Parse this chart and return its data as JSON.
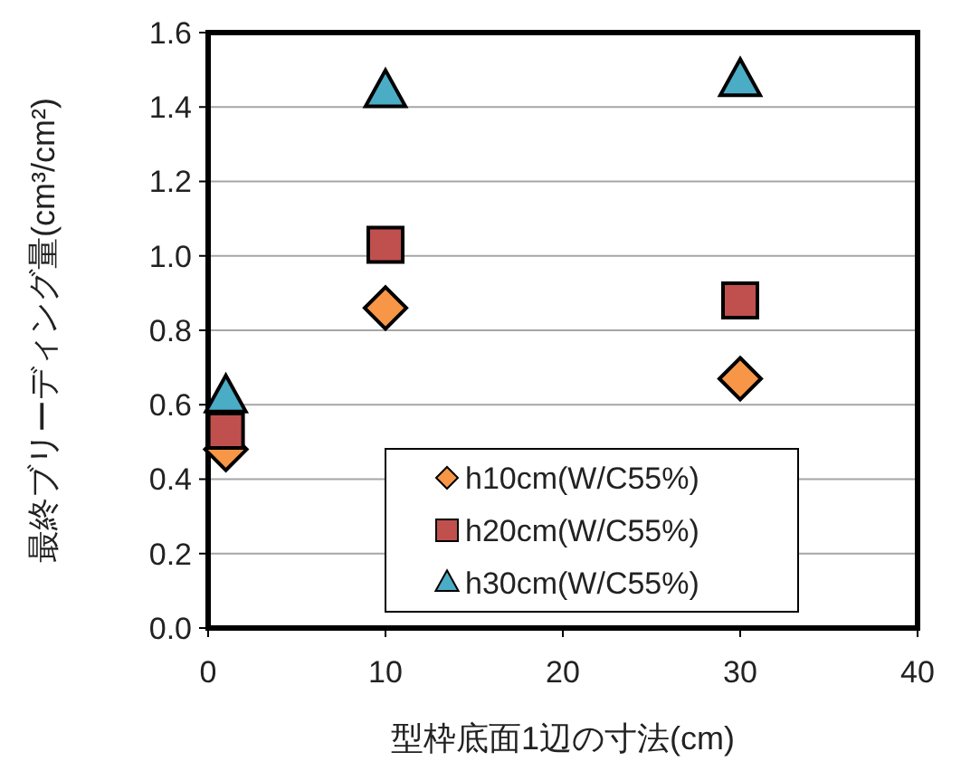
{
  "chart_data": {
    "type": "scatter",
    "xlabel": "型枠底面1辺の寸法(cm)",
    "ylabel": "最終ブリーディング量(cm³/cm²)",
    "xlim": [
      0,
      40
    ],
    "xticks": [
      0,
      10,
      20,
      30,
      40
    ],
    "ylim": [
      0,
      1.6
    ],
    "yticks": [
      {
        "value": 0,
        "label": "0.0"
      },
      {
        "value": 0.2,
        "label": "0.2"
      },
      {
        "value": 0.4,
        "label": "0.4"
      },
      {
        "value": 0.6,
        "label": "0.6"
      },
      {
        "value": 0.8,
        "label": "0.8"
      },
      {
        "value": 1,
        "label": "1.0"
      },
      {
        "value": 1.2,
        "label": "1.2"
      },
      {
        "value": 1.4,
        "label": "1.4"
      },
      {
        "value": 1.6,
        "label": "1.6"
      }
    ],
    "grid": "y",
    "legend": "bottom right",
    "x": [
      1,
      10,
      30
    ],
    "series": [
      {
        "name": "h10cm(W/C55%)",
        "color": "#f79646",
        "marker": "diamond",
        "values": [
          0.48,
          0.86,
          0.67
        ]
      },
      {
        "name": "h20cm(W/C55%)",
        "color": "#c0504d",
        "marker": "square",
        "values": [
          0.53,
          1.03,
          0.88
        ]
      },
      {
        "name": "h30cm(W/C55%)",
        "color": "#4bacc6",
        "marker": "triangle",
        "values": [
          0.62,
          1.44,
          1.47
        ]
      }
    ]
  }
}
